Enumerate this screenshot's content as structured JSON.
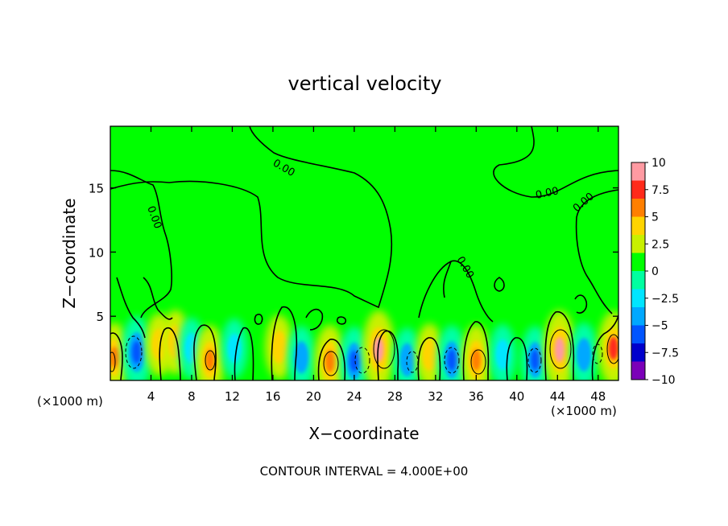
{
  "chart_data": {
    "type": "heatmap",
    "title": "vertical velocity",
    "xlabel": "X−coordinate",
    "ylabel": "Z−coordinate",
    "x_unit_left": "(×1000 m)",
    "x_unit_right": "(×1000 m)",
    "xlim": [
      0,
      50
    ],
    "ylim": [
      0,
      19.8
    ],
    "x_ticks": [
      4,
      8,
      12,
      16,
      20,
      24,
      28,
      32,
      36,
      40,
      44,
      48
    ],
    "x_tick_labels": [
      "4",
      "8",
      "12",
      "16",
      "20",
      "24",
      "28",
      "32",
      "36",
      "40",
      "44",
      "48"
    ],
    "y_ticks": [
      5,
      10,
      15
    ],
    "y_tick_labels": [
      "5",
      "10",
      "15"
    ],
    "contour_labels": [
      "0.00",
      "0.00",
      "0.00",
      "0.00",
      "0.00"
    ],
    "footnote": "CONTOUR INTERVAL = 4.000E+00",
    "colorbar": {
      "range": [
        -10,
        10
      ],
      "tick_values": [
        10,
        7.5,
        5,
        2.5,
        0,
        -2.5,
        -5,
        -7.5,
        -10
      ],
      "tick_labels": [
        "10",
        "7.5",
        "5",
        "2.5",
        "0",
        "−2.5",
        "−5",
        "−7.5",
        "−10"
      ],
      "colors": [
        "#ff9aa2",
        "#ff2a1a",
        "#ff7f00",
        "#ffd400",
        "#c8f000",
        "#00ff00",
        "#00ffa0",
        "#00e5ff",
        "#00a8ff",
        "#0055ff",
        "#0000cc",
        "#7b00b8"
      ]
    },
    "background_value": 0,
    "cells": [
      {
        "x": 0.4,
        "z": 1.8,
        "value": 5.5
      },
      {
        "x": 2.6,
        "z": 2.2,
        "value": -6.5
      },
      {
        "x": 4.8,
        "z": 2.8,
        "value": 3.5
      },
      {
        "x": 6.4,
        "z": 3.0,
        "value": 4.0
      },
      {
        "x": 8.0,
        "z": 2.5,
        "value": -3.0
      },
      {
        "x": 9.8,
        "z": 1.6,
        "value": 5.5
      },
      {
        "x": 12.2,
        "z": 2.5,
        "value": -2.5
      },
      {
        "x": 16.6,
        "z": 2.6,
        "value": 4.0
      },
      {
        "x": 18.8,
        "z": 1.8,
        "value": -3.5
      },
      {
        "x": 21.6,
        "z": 1.5,
        "value": 6.5
      },
      {
        "x": 24.0,
        "z": 1.5,
        "value": -5.5
      },
      {
        "x": 26.4,
        "z": 2.4,
        "value": 8.5
      },
      {
        "x": 29.2,
        "z": 1.6,
        "value": -4.0
      },
      {
        "x": 31.4,
        "z": 2.0,
        "value": 3.5
      },
      {
        "x": 33.6,
        "z": 1.6,
        "value": -5.5
      },
      {
        "x": 36.0,
        "z": 1.6,
        "value": 6.0
      },
      {
        "x": 38.6,
        "z": 2.0,
        "value": -3.0
      },
      {
        "x": 41.8,
        "z": 1.6,
        "value": -5.0
      },
      {
        "x": 44.2,
        "z": 2.4,
        "value": 8.5
      },
      {
        "x": 46.6,
        "z": 2.0,
        "value": -4.0
      },
      {
        "x": 49.5,
        "z": 2.5,
        "value": 7.0
      }
    ]
  }
}
